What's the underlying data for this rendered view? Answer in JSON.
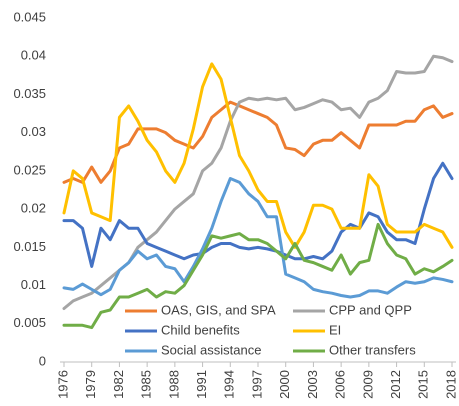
{
  "chart_data": {
    "type": "line",
    "x": [
      1976,
      1977,
      1978,
      1979,
      1980,
      1981,
      1982,
      1983,
      1984,
      1985,
      1986,
      1987,
      1988,
      1989,
      1990,
      1991,
      1992,
      1993,
      1994,
      1995,
      1996,
      1997,
      1998,
      1999,
      2000,
      2001,
      2002,
      2003,
      2004,
      2005,
      2006,
      2007,
      2008,
      2009,
      2010,
      2011,
      2012,
      2013,
      2014,
      2015,
      2016,
      2017,
      2018
    ],
    "xlim": [
      1976,
      2018
    ],
    "xticks": [
      1976,
      1979,
      1982,
      1985,
      1988,
      1991,
      1994,
      1997,
      2000,
      2003,
      2006,
      2009,
      2012,
      2015,
      2018
    ],
    "ylim": [
      0,
      0.045
    ],
    "yticks": [
      0,
      0.005,
      0.01,
      0.015,
      0.02,
      0.025,
      0.03,
      0.035,
      0.04,
      0.045
    ],
    "grid": false,
    "legend": "lower center",
    "series": [
      {
        "name": "OAS, GIS, and SPA",
        "color": "#ED7D31",
        "values": [
          0.0235,
          0.024,
          0.0235,
          0.0255,
          0.0235,
          0.025,
          0.028,
          0.0285,
          0.0305,
          0.0305,
          0.0305,
          0.03,
          0.029,
          0.0285,
          0.028,
          0.0295,
          0.032,
          0.033,
          0.034,
          0.0335,
          0.033,
          0.0325,
          0.032,
          0.031,
          0.028,
          0.0278,
          0.027,
          0.0285,
          0.029,
          0.029,
          0.03,
          0.029,
          0.028,
          0.031,
          0.031,
          0.031,
          0.031,
          0.0315,
          0.0315,
          0.033,
          0.0335,
          0.032,
          0.0325
        ]
      },
      {
        "name": "CPP and QPP",
        "color": "#A5A5A5",
        "values": [
          0.007,
          0.008,
          0.0085,
          0.009,
          0.01,
          0.011,
          0.012,
          0.013,
          0.015,
          0.016,
          0.017,
          0.0185,
          0.02,
          0.021,
          0.022,
          0.025,
          0.026,
          0.028,
          0.0315,
          0.034,
          0.0345,
          0.0343,
          0.0345,
          0.0343,
          0.0345,
          0.033,
          0.0333,
          0.0338,
          0.0343,
          0.034,
          0.033,
          0.0332,
          0.032,
          0.034,
          0.0345,
          0.0355,
          0.038,
          0.0378,
          0.0378,
          0.038,
          0.04,
          0.0398,
          0.0393
        ]
      },
      {
        "name": "Child benefits",
        "color": "#4472C4",
        "values": [
          0.0185,
          0.0185,
          0.0175,
          0.0125,
          0.0175,
          0.016,
          0.0185,
          0.0175,
          0.0175,
          0.0155,
          0.015,
          0.0145,
          0.014,
          0.0135,
          0.014,
          0.0142,
          0.015,
          0.0155,
          0.0155,
          0.015,
          0.0148,
          0.015,
          0.0148,
          0.0145,
          0.014,
          0.0135,
          0.0135,
          0.0138,
          0.0135,
          0.0145,
          0.017,
          0.018,
          0.0175,
          0.0195,
          0.019,
          0.017,
          0.016,
          0.016,
          0.0155,
          0.02,
          0.024,
          0.026,
          0.024
        ]
      },
      {
        "name": "EI",
        "color": "#FFC000",
        "values": [
          0.0195,
          0.025,
          0.024,
          0.0195,
          0.019,
          0.0185,
          0.032,
          0.0335,
          0.0315,
          0.029,
          0.0275,
          0.025,
          0.0235,
          0.026,
          0.0305,
          0.036,
          0.039,
          0.037,
          0.032,
          0.027,
          0.025,
          0.0225,
          0.021,
          0.021,
          0.017,
          0.015,
          0.017,
          0.0205,
          0.0205,
          0.02,
          0.0175,
          0.0175,
          0.0175,
          0.0245,
          0.023,
          0.018,
          0.017,
          0.017,
          0.017,
          0.018,
          0.0175,
          0.017,
          0.015
        ]
      },
      {
        "name": "Social assistance",
        "color": "#5B9BD5",
        "values": [
          0.0097,
          0.0095,
          0.0102,
          0.0095,
          0.0088,
          0.0095,
          0.012,
          0.013,
          0.0145,
          0.0135,
          0.014,
          0.0125,
          0.0122,
          0.0105,
          0.0125,
          0.0148,
          0.0175,
          0.021,
          0.024,
          0.0235,
          0.022,
          0.021,
          0.019,
          0.019,
          0.0115,
          0.011,
          0.0105,
          0.0095,
          0.0092,
          0.009,
          0.0087,
          0.0085,
          0.0087,
          0.0093,
          0.0093,
          0.009,
          0.0098,
          0.0105,
          0.0103,
          0.0105,
          0.011,
          0.0108,
          0.0105
        ]
      },
      {
        "name": "Other transfers",
        "color": "#70AD47",
        "values": [
          0.0048,
          0.0048,
          0.0048,
          0.0045,
          0.0065,
          0.0068,
          0.0085,
          0.0085,
          0.009,
          0.0095,
          0.0085,
          0.0092,
          0.009,
          0.01,
          0.012,
          0.014,
          0.0165,
          0.0162,
          0.0165,
          0.0168,
          0.016,
          0.016,
          0.0155,
          0.0145,
          0.0135,
          0.0155,
          0.0133,
          0.013,
          0.0125,
          0.012,
          0.014,
          0.0115,
          0.013,
          0.0133,
          0.018,
          0.0155,
          0.014,
          0.0135,
          0.0115,
          0.0122,
          0.0118,
          0.0125,
          0.0133
        ]
      }
    ]
  }
}
